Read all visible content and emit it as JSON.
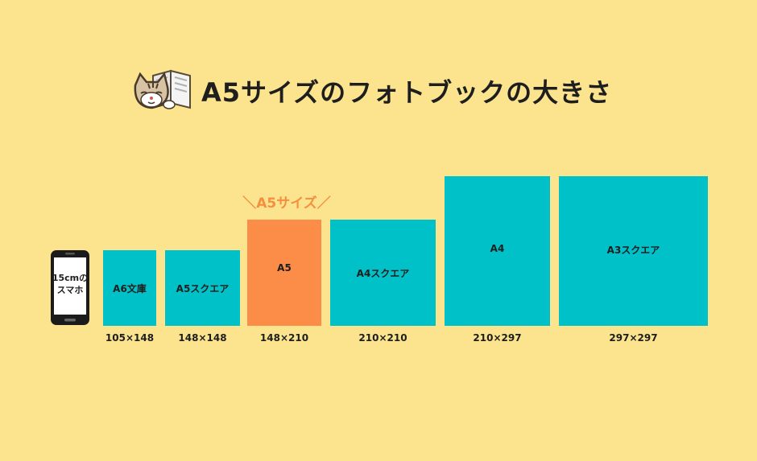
{
  "title": "A5サイズのフォトブックの大きさ",
  "highlight_label": "＼A5サイズ／",
  "phone": {
    "line1": "15cmの",
    "line2": "スマホ"
  },
  "formats": [
    {
      "name": "A6文庫",
      "size": "105×148"
    },
    {
      "name": "A5スクエア",
      "size": "148×148"
    },
    {
      "name": "A5",
      "size": "148×210",
      "highlight": true
    },
    {
      "name": "A4スクエア",
      "size": "210×210"
    },
    {
      "name": "A4",
      "size": "210×297"
    },
    {
      "name": "A3スクエア",
      "size": "297×297"
    }
  ],
  "colors": {
    "background": "#FCE48F",
    "box": "#00C0C8",
    "highlight": "#FB8D48",
    "accent_text": "#F39040"
  },
  "icons": [
    "cat-reading-book-icon",
    "smartphone-icon"
  ]
}
